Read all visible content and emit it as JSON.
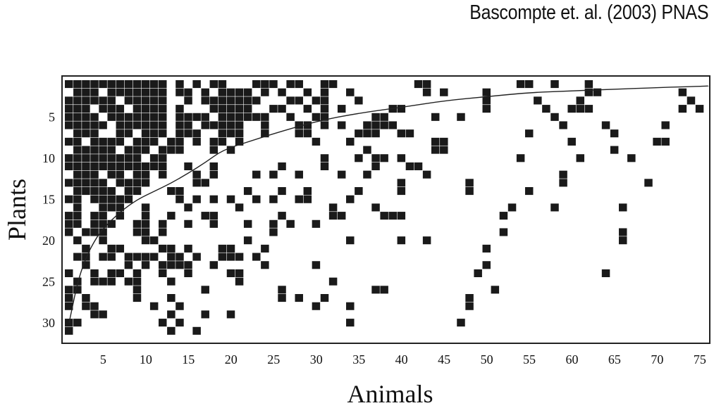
{
  "citation": "Bascompte et. al. (2003) PNAS",
  "chart_data": {
    "type": "heatmap",
    "title": "",
    "xlabel": "Animals",
    "ylabel": "Plants",
    "n_cols": 76,
    "n_rows": 31,
    "x_ticks": [
      5,
      10,
      15,
      20,
      25,
      30,
      35,
      40,
      45,
      50,
      55,
      60,
      65,
      70,
      75
    ],
    "y_ticks": [
      5,
      10,
      15,
      20,
      25,
      30
    ],
    "cell_color": "#1a1a1a",
    "frame_color": "#222222",
    "isocline": [
      [
        1,
        30
      ],
      [
        2,
        25
      ],
      [
        3,
        22
      ],
      [
        4,
        20
      ],
      [
        5,
        18.5
      ],
      [
        7,
        16.5
      ],
      [
        9,
        15
      ],
      [
        11,
        14
      ],
      [
        13,
        13
      ],
      [
        15,
        11.8
      ],
      [
        17,
        10.5
      ],
      [
        19,
        9
      ],
      [
        22,
        8
      ],
      [
        25,
        7
      ],
      [
        30,
        5.5
      ],
      [
        35,
        4.5
      ],
      [
        40,
        3.8
      ],
      [
        45,
        3
      ],
      [
        50,
        2.5
      ],
      [
        55,
        2
      ],
      [
        60,
        1.8
      ],
      [
        65,
        1.6
      ],
      [
        70,
        1.4
      ],
      [
        76,
        1.2
      ]
    ],
    "rows": {
      "1": [
        [
          1,
          12
        ],
        [
          14,
          14
        ],
        [
          16,
          16
        ],
        [
          18,
          19
        ],
        [
          23,
          25
        ],
        [
          27,
          28
        ],
        [
          31,
          32
        ],
        [
          42,
          43
        ],
        [
          54,
          55
        ],
        [
          58,
          58
        ],
        [
          62,
          62
        ]
      ],
      "2": [
        [
          2,
          4
        ],
        [
          6,
          12
        ],
        [
          14,
          15
        ],
        [
          17,
          17
        ],
        [
          19,
          22
        ],
        [
          24,
          24
        ],
        [
          26,
          26
        ],
        [
          29,
          29
        ],
        [
          31,
          31
        ],
        [
          34,
          34
        ],
        [
          43,
          43
        ],
        [
          45,
          45
        ],
        [
          50,
          50
        ],
        [
          62,
          63
        ],
        [
          73,
          73
        ]
      ],
      "3": [
        [
          1,
          6
        ],
        [
          8,
          12
        ],
        [
          15,
          15
        ],
        [
          17,
          23
        ],
        [
          27,
          28
        ],
        [
          30,
          31
        ],
        [
          35,
          35
        ],
        [
          50,
          50
        ],
        [
          56,
          56
        ],
        [
          61,
          61
        ],
        [
          74,
          74
        ]
      ],
      "4": [
        [
          1,
          3
        ],
        [
          5,
          7
        ],
        [
          9,
          12
        ],
        [
          14,
          14
        ],
        [
          18,
          22
        ],
        [
          25,
          26
        ],
        [
          29,
          29
        ],
        [
          31,
          31
        ],
        [
          33,
          33
        ],
        [
          39,
          40
        ],
        [
          50,
          50
        ],
        [
          57,
          57
        ],
        [
          60,
          62
        ],
        [
          73,
          73
        ],
        [
          75,
          75
        ]
      ],
      "5": [
        [
          1,
          4
        ],
        [
          6,
          12
        ],
        [
          14,
          17
        ],
        [
          19,
          24
        ],
        [
          27,
          27
        ],
        [
          30,
          31
        ],
        [
          37,
          38
        ],
        [
          44,
          44
        ],
        [
          47,
          47
        ],
        [
          58,
          58
        ]
      ],
      "6": [
        [
          1,
          5
        ],
        [
          7,
          12
        ],
        [
          14,
          15
        ],
        [
          17,
          21
        ],
        [
          24,
          24
        ],
        [
          28,
          29
        ],
        [
          31,
          31
        ],
        [
          33,
          33
        ],
        [
          36,
          39
        ],
        [
          59,
          59
        ],
        [
          64,
          64
        ],
        [
          71,
          71
        ]
      ],
      "7": [
        [
          2,
          4
        ],
        [
          7,
          8
        ],
        [
          10,
          12
        ],
        [
          14,
          16
        ],
        [
          19,
          21
        ],
        [
          24,
          24
        ],
        [
          28,
          29
        ],
        [
          35,
          37
        ],
        [
          40,
          41
        ],
        [
          55,
          55
        ],
        [
          65,
          65
        ]
      ],
      "8": [
        [
          1,
          2
        ],
        [
          4,
          7
        ],
        [
          9,
          11
        ],
        [
          13,
          14
        ],
        [
          16,
          16
        ],
        [
          18,
          19
        ],
        [
          21,
          21
        ],
        [
          30,
          30
        ],
        [
          34,
          34
        ],
        [
          44,
          45
        ],
        [
          60,
          60
        ],
        [
          70,
          71
        ]
      ],
      "9": [
        [
          2,
          6
        ],
        [
          8,
          10
        ],
        [
          12,
          14
        ],
        [
          18,
          18
        ],
        [
          20,
          20
        ],
        [
          36,
          36
        ],
        [
          44,
          45
        ],
        [
          65,
          65
        ]
      ],
      "10": [
        [
          1,
          9
        ],
        [
          11,
          12
        ],
        [
          31,
          31
        ],
        [
          35,
          35
        ],
        [
          37,
          38
        ],
        [
          40,
          40
        ],
        [
          54,
          54
        ],
        [
          61,
          61
        ],
        [
          67,
          67
        ]
      ],
      "11": [
        [
          1,
          8
        ],
        [
          9,
          12
        ],
        [
          15,
          15
        ],
        [
          18,
          18
        ],
        [
          26,
          26
        ],
        [
          31,
          31
        ],
        [
          37,
          37
        ],
        [
          41,
          42
        ]
      ],
      "12": [
        [
          2,
          4
        ],
        [
          6,
          7
        ],
        [
          9,
          10
        ],
        [
          12,
          12
        ],
        [
          16,
          16
        ],
        [
          18,
          18
        ],
        [
          23,
          23
        ],
        [
          25,
          25
        ],
        [
          28,
          28
        ],
        [
          33,
          33
        ],
        [
          36,
          36
        ],
        [
          43,
          43
        ],
        [
          59,
          59
        ]
      ],
      "13": [
        [
          1,
          5
        ],
        [
          7,
          10
        ],
        [
          16,
          17
        ],
        [
          40,
          40
        ],
        [
          48,
          48
        ],
        [
          59,
          59
        ],
        [
          69,
          69
        ]
      ],
      "14": [
        [
          2,
          6
        ],
        [
          8,
          9
        ],
        [
          13,
          14
        ],
        [
          22,
          22
        ],
        [
          26,
          26
        ],
        [
          29,
          29
        ],
        [
          35,
          35
        ],
        [
          40,
          40
        ],
        [
          48,
          48
        ],
        [
          55,
          55
        ]
      ],
      "15": [
        [
          1,
          2
        ],
        [
          4,
          8
        ],
        [
          14,
          14
        ],
        [
          16,
          16
        ],
        [
          18,
          18
        ],
        [
          20,
          20
        ],
        [
          23,
          23
        ],
        [
          25,
          25
        ],
        [
          28,
          29
        ],
        [
          34,
          34
        ]
      ],
      "16": [
        [
          2,
          2
        ],
        [
          5,
          7
        ],
        [
          10,
          10
        ],
        [
          15,
          15
        ],
        [
          21,
          21
        ],
        [
          32,
          32
        ],
        [
          37,
          37
        ],
        [
          53,
          53
        ],
        [
          58,
          58
        ],
        [
          66,
          66
        ]
      ],
      "17": [
        [
          1,
          2
        ],
        [
          4,
          5
        ],
        [
          7,
          7
        ],
        [
          10,
          10
        ],
        [
          13,
          13
        ],
        [
          17,
          18
        ],
        [
          26,
          26
        ],
        [
          32,
          32
        ],
        [
          33,
          33
        ],
        [
          38,
          40
        ],
        [
          52,
          52
        ]
      ],
      "18": [
        [
          1,
          2
        ],
        [
          4,
          6
        ],
        [
          9,
          10
        ],
        [
          12,
          12
        ],
        [
          15,
          15
        ],
        [
          18,
          18
        ],
        [
          22,
          22
        ],
        [
          25,
          25
        ],
        [
          27,
          27
        ],
        [
          30,
          30
        ]
      ],
      "19": [
        [
          1,
          1
        ],
        [
          3,
          5
        ],
        [
          9,
          10
        ],
        [
          12,
          12
        ],
        [
          25,
          25
        ],
        [
          52,
          52
        ],
        [
          66,
          66
        ]
      ],
      "20": [
        [
          2,
          2
        ],
        [
          5,
          5
        ],
        [
          10,
          11
        ],
        [
          22,
          22
        ],
        [
          34,
          34
        ],
        [
          40,
          40
        ],
        [
          43,
          43
        ],
        [
          66,
          66
        ]
      ],
      "21": [
        [
          3,
          3
        ],
        [
          6,
          7
        ],
        [
          12,
          13
        ],
        [
          15,
          15
        ],
        [
          19,
          20
        ],
        [
          24,
          24
        ],
        [
          50,
          50
        ]
      ],
      "22": [
        [
          2,
          3
        ],
        [
          5,
          6
        ],
        [
          8,
          11
        ],
        [
          13,
          14
        ],
        [
          16,
          16
        ],
        [
          19,
          21
        ],
        [
          23,
          23
        ]
      ],
      "23": [
        [
          3,
          3
        ],
        [
          8,
          8
        ],
        [
          10,
          10
        ],
        [
          12,
          15
        ],
        [
          18,
          18
        ],
        [
          24,
          24
        ],
        [
          30,
          30
        ],
        [
          50,
          50
        ]
      ],
      "24": [
        [
          1,
          1
        ],
        [
          4,
          4
        ],
        [
          6,
          7
        ],
        [
          9,
          9
        ],
        [
          12,
          12
        ],
        [
          15,
          15
        ],
        [
          20,
          21
        ],
        [
          49,
          49
        ],
        [
          64,
          64
        ]
      ],
      "25": [
        [
          2,
          2
        ],
        [
          4,
          6
        ],
        [
          8,
          8
        ],
        [
          9,
          9
        ],
        [
          13,
          13
        ],
        [
          21,
          21
        ],
        [
          32,
          32
        ]
      ],
      "26": [
        [
          1,
          1
        ],
        [
          2,
          2
        ],
        [
          9,
          9
        ],
        [
          17,
          17
        ],
        [
          26,
          26
        ],
        [
          37,
          38
        ],
        [
          51,
          51
        ]
      ],
      "27": [
        [
          1,
          1
        ],
        [
          3,
          3
        ],
        [
          9,
          9
        ],
        [
          13,
          13
        ],
        [
          26,
          26
        ],
        [
          28,
          28
        ],
        [
          31,
          31
        ],
        [
          48,
          48
        ]
      ],
      "28": [
        [
          1,
          1
        ],
        [
          3,
          4
        ],
        [
          11,
          11
        ],
        [
          14,
          14
        ],
        [
          30,
          30
        ],
        [
          34,
          34
        ],
        [
          48,
          48
        ]
      ],
      "29": [
        [
          4,
          4
        ],
        [
          5,
          5
        ],
        [
          13,
          13
        ],
        [
          17,
          17
        ],
        [
          20,
          20
        ]
      ],
      "30": [
        [
          1,
          1
        ],
        [
          2,
          2
        ],
        [
          12,
          12
        ],
        [
          14,
          14
        ],
        [
          34,
          34
        ],
        [
          47,
          47
        ]
      ],
      "31": [
        [
          1,
          1
        ],
        [
          13,
          13
        ],
        [
          16,
          16
        ]
      ]
    }
  }
}
